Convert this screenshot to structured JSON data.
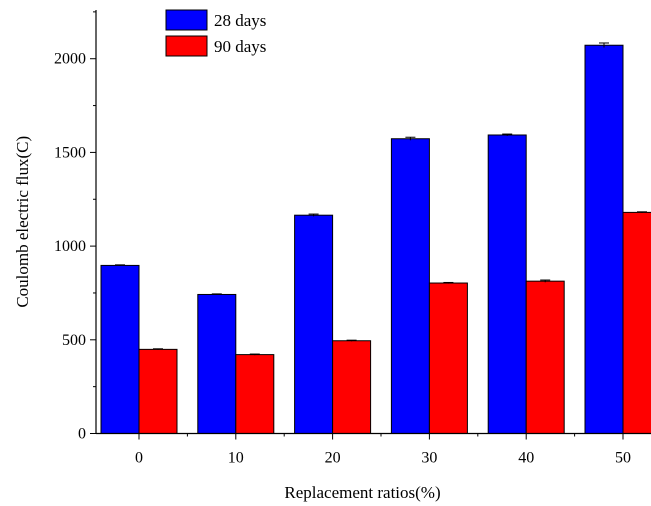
{
  "chart_data": {
    "type": "bar",
    "xlabel": "Replacement ratios(%)",
    "ylabel": "Coulomb electric flux(C)",
    "categories": [
      "0",
      "10",
      "20",
      "30",
      "40",
      "50"
    ],
    "ylim": [
      0,
      2260
    ],
    "yticks": [
      0,
      500,
      1000,
      1500,
      2000
    ],
    "grid": false,
    "legend_position": "top-left",
    "series": [
      {
        "name": "28 days",
        "color": "#0000ff",
        "values": [
          897,
          742,
          1165,
          1573,
          1593,
          2072
        ],
        "errors": [
          3,
          3,
          6,
          8,
          5,
          12
        ]
      },
      {
        "name": "90 days",
        "color": "#ff0000",
        "values": [
          449,
          421,
          495,
          803,
          813,
          1180
        ],
        "errors": [
          3,
          3,
          3,
          3,
          6,
          3
        ]
      }
    ]
  }
}
